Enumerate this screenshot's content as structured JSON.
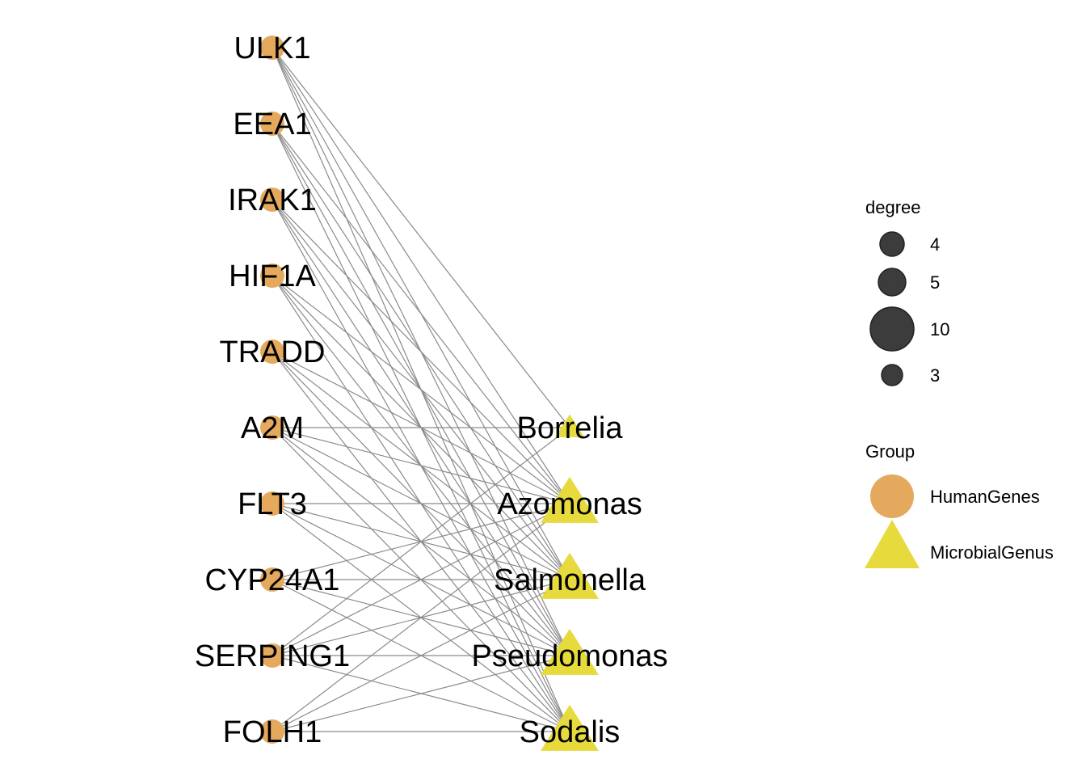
{
  "colors": {
    "human_genes": "#E5A95E",
    "microbial_genus": "#E6DA3C",
    "edge": "#8A8A8A",
    "degree_key": "#3C3C3C"
  },
  "nodes": {
    "genes": [
      {
        "id": "ULK1",
        "label": "ULK1"
      },
      {
        "id": "EEA1",
        "label": "EEA1"
      },
      {
        "id": "IRAK1",
        "label": "IRAK1"
      },
      {
        "id": "HIF1A",
        "label": "HIF1A"
      },
      {
        "id": "TRADD",
        "label": "TRADD"
      },
      {
        "id": "A2M",
        "label": "A2M"
      },
      {
        "id": "FLT3",
        "label": "FLT3"
      },
      {
        "id": "CYP24A1",
        "label": "CYP24A1"
      },
      {
        "id": "SERPING1",
        "label": "SERPING1"
      },
      {
        "id": "FOLH1",
        "label": "FOLH1"
      }
    ],
    "genera": [
      {
        "id": "Borrelia",
        "label": "Borrelia",
        "degree": 3
      },
      {
        "id": "Azomonas",
        "label": "Azomonas",
        "degree": 10
      },
      {
        "id": "Salmonella",
        "label": "Salmonella",
        "degree": 10
      },
      {
        "id": "Pseudomonas",
        "label": "Pseudomonas",
        "degree": 10
      },
      {
        "id": "Sodalis",
        "label": "Sodalis",
        "degree": 10
      }
    ]
  },
  "edges": [
    [
      "ULK1",
      "Borrelia"
    ],
    [
      "ULK1",
      "Azomonas"
    ],
    [
      "ULK1",
      "Salmonella"
    ],
    [
      "ULK1",
      "Pseudomonas"
    ],
    [
      "ULK1",
      "Sodalis"
    ],
    [
      "EEA1",
      "Azomonas"
    ],
    [
      "EEA1",
      "Salmonella"
    ],
    [
      "EEA1",
      "Pseudomonas"
    ],
    [
      "EEA1",
      "Sodalis"
    ],
    [
      "IRAK1",
      "Azomonas"
    ],
    [
      "IRAK1",
      "Salmonella"
    ],
    [
      "IRAK1",
      "Pseudomonas"
    ],
    [
      "IRAK1",
      "Sodalis"
    ],
    [
      "HIF1A",
      "Azomonas"
    ],
    [
      "HIF1A",
      "Salmonella"
    ],
    [
      "HIF1A",
      "Pseudomonas"
    ],
    [
      "HIF1A",
      "Sodalis"
    ],
    [
      "TRADD",
      "Azomonas"
    ],
    [
      "TRADD",
      "Salmonella"
    ],
    [
      "TRADD",
      "Pseudomonas"
    ],
    [
      "TRADD",
      "Sodalis"
    ],
    [
      "A2M",
      "Borrelia"
    ],
    [
      "A2M",
      "Azomonas"
    ],
    [
      "A2M",
      "Salmonella"
    ],
    [
      "A2M",
      "Pseudomonas"
    ],
    [
      "A2M",
      "Sodalis"
    ],
    [
      "FLT3",
      "Azomonas"
    ],
    [
      "FLT3",
      "Salmonella"
    ],
    [
      "FLT3",
      "Pseudomonas"
    ],
    [
      "FLT3",
      "Sodalis"
    ],
    [
      "CYP24A1",
      "Azomonas"
    ],
    [
      "CYP24A1",
      "Salmonella"
    ],
    [
      "CYP24A1",
      "Pseudomonas"
    ],
    [
      "CYP24A1",
      "Sodalis"
    ],
    [
      "SERPING1",
      "Borrelia"
    ],
    [
      "SERPING1",
      "Azomonas"
    ],
    [
      "SERPING1",
      "Salmonella"
    ],
    [
      "SERPING1",
      "Pseudomonas"
    ],
    [
      "SERPING1",
      "Sodalis"
    ],
    [
      "FOLH1",
      "Azomonas"
    ],
    [
      "FOLH1",
      "Salmonella"
    ],
    [
      "FOLH1",
      "Pseudomonas"
    ],
    [
      "FOLH1",
      "Sodalis"
    ]
  ],
  "legend": {
    "degree": {
      "title": "degree",
      "entries": [
        {
          "label": "4",
          "value": 4
        },
        {
          "label": "5",
          "value": 5
        },
        {
          "label": "10",
          "value": 10
        },
        {
          "label": "3",
          "value": 3
        }
      ]
    },
    "group": {
      "title": "Group",
      "entries": [
        {
          "label": "HumanGenes",
          "shape": "circle"
        },
        {
          "label": "MicrobialGenus",
          "shape": "triangle"
        }
      ]
    }
  }
}
